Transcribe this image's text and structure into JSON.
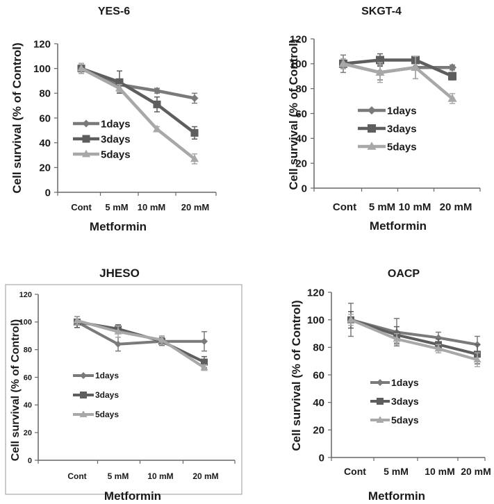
{
  "chart_data": [
    {
      "type": "line",
      "title": "YES-6",
      "xlabel": "Metformin",
      "ylabel": "Cell survival (% of Control)",
      "categories": [
        "Cont",
        "5 mM",
        "10 mM",
        "20 mM"
      ],
      "ylim": [
        0,
        120
      ],
      "yticks": [
        "0",
        "20",
        "40",
        "60",
        "80",
        "100",
        "120"
      ],
      "grid": false,
      "legend_position": "left-center",
      "series": [
        {
          "name": "1days",
          "values": [
            100,
            87,
            82,
            76
          ],
          "errors": [
            4,
            4,
            2,
            4
          ],
          "color": "#7a7a7a",
          "marker": "diamond"
        },
        {
          "name": "3days",
          "values": [
            100,
            89,
            71,
            48
          ],
          "errors": [
            4,
            9,
            6,
            5
          ],
          "color": "#5e5e5e",
          "marker": "square"
        },
        {
          "name": "5days",
          "values": [
            100,
            84,
            51,
            27
          ],
          "errors": [
            4,
            3,
            2,
            4
          ],
          "color": "#a8a8a8",
          "marker": "triangle"
        }
      ]
    },
    {
      "type": "line",
      "title": "SKGT-4",
      "xlabel": "Metformin",
      "ylabel": "Cell survival (% of Control)",
      "categories": [
        "Cont",
        "5 mM",
        "10 mM",
        "20 mM"
      ],
      "ylim": [
        0,
        120
      ],
      "yticks": [
        "0",
        "20",
        "40",
        "60",
        "80",
        "100",
        "120"
      ],
      "grid": false,
      "legend_position": "left-center",
      "series": [
        {
          "name": "1days",
          "values": [
            100,
            93,
            97,
            97
          ],
          "errors": [
            7,
            6,
            9,
            2
          ],
          "color": "#7a7a7a",
          "marker": "diamond"
        },
        {
          "name": "3days",
          "values": [
            100,
            103,
            103,
            90
          ],
          "errors": [
            4,
            5,
            2,
            3
          ],
          "color": "#5e5e5e",
          "marker": "square"
        },
        {
          "name": "5days",
          "values": [
            100,
            93,
            97,
            72
          ],
          "errors": [
            4,
            8,
            9,
            4
          ],
          "color": "#a8a8a8",
          "marker": "triangle"
        }
      ]
    },
    {
      "type": "line",
      "title": "JHESO",
      "xlabel": "Metformin",
      "ylabel": "Cell survival (% of Control)",
      "categories": [
        "Cont",
        "5 mM",
        "10 mM",
        "20 mM"
      ],
      "ylim": [
        0,
        120
      ],
      "yticks": [
        "0",
        "20",
        "40",
        "60",
        "80",
        "100",
        "120"
      ],
      "grid": false,
      "legend_position": "left-center",
      "series": [
        {
          "name": "1days",
          "values": [
            100,
            84,
            86,
            86
          ],
          "errors": [
            4,
            5,
            3,
            7
          ],
          "color": "#7a7a7a",
          "marker": "diamond"
        },
        {
          "name": "3days",
          "values": [
            100,
            95,
            86,
            71
          ],
          "errors": [
            4,
            3,
            2,
            4
          ],
          "color": "#5e5e5e",
          "marker": "square"
        },
        {
          "name": "5days",
          "values": [
            101,
            93,
            87,
            67
          ],
          "errors": [
            3,
            4,
            3,
            2
          ],
          "color": "#a8a8a8",
          "marker": "triangle"
        }
      ]
    },
    {
      "type": "line",
      "title": "OACP",
      "xlabel": "Metformin",
      "ylabel": "Cell survival (% of Control)",
      "categories": [
        "Cont",
        "5 mM",
        "10 mM",
        "20 mM"
      ],
      "ylim": [
        0,
        120
      ],
      "yticks": [
        "0",
        "20",
        "40",
        "60",
        "80",
        "100",
        "120"
      ],
      "grid": false,
      "legend_position": "left-center",
      "series": [
        {
          "name": "1days",
          "values": [
            100,
            91,
            87,
            82
          ],
          "errors": [
            12,
            10,
            4,
            6
          ],
          "color": "#7a7a7a",
          "marker": "diamond"
        },
        {
          "name": "3days",
          "values": [
            100,
            89,
            82,
            75
          ],
          "errors": [
            6,
            6,
            4,
            7
          ],
          "color": "#5e5e5e",
          "marker": "square"
        },
        {
          "name": "5days",
          "values": [
            100,
            86,
            79,
            71
          ],
          "errors": [
            4,
            4,
            3,
            5
          ],
          "color": "#a8a8a8",
          "marker": "triangle"
        }
      ]
    }
  ]
}
